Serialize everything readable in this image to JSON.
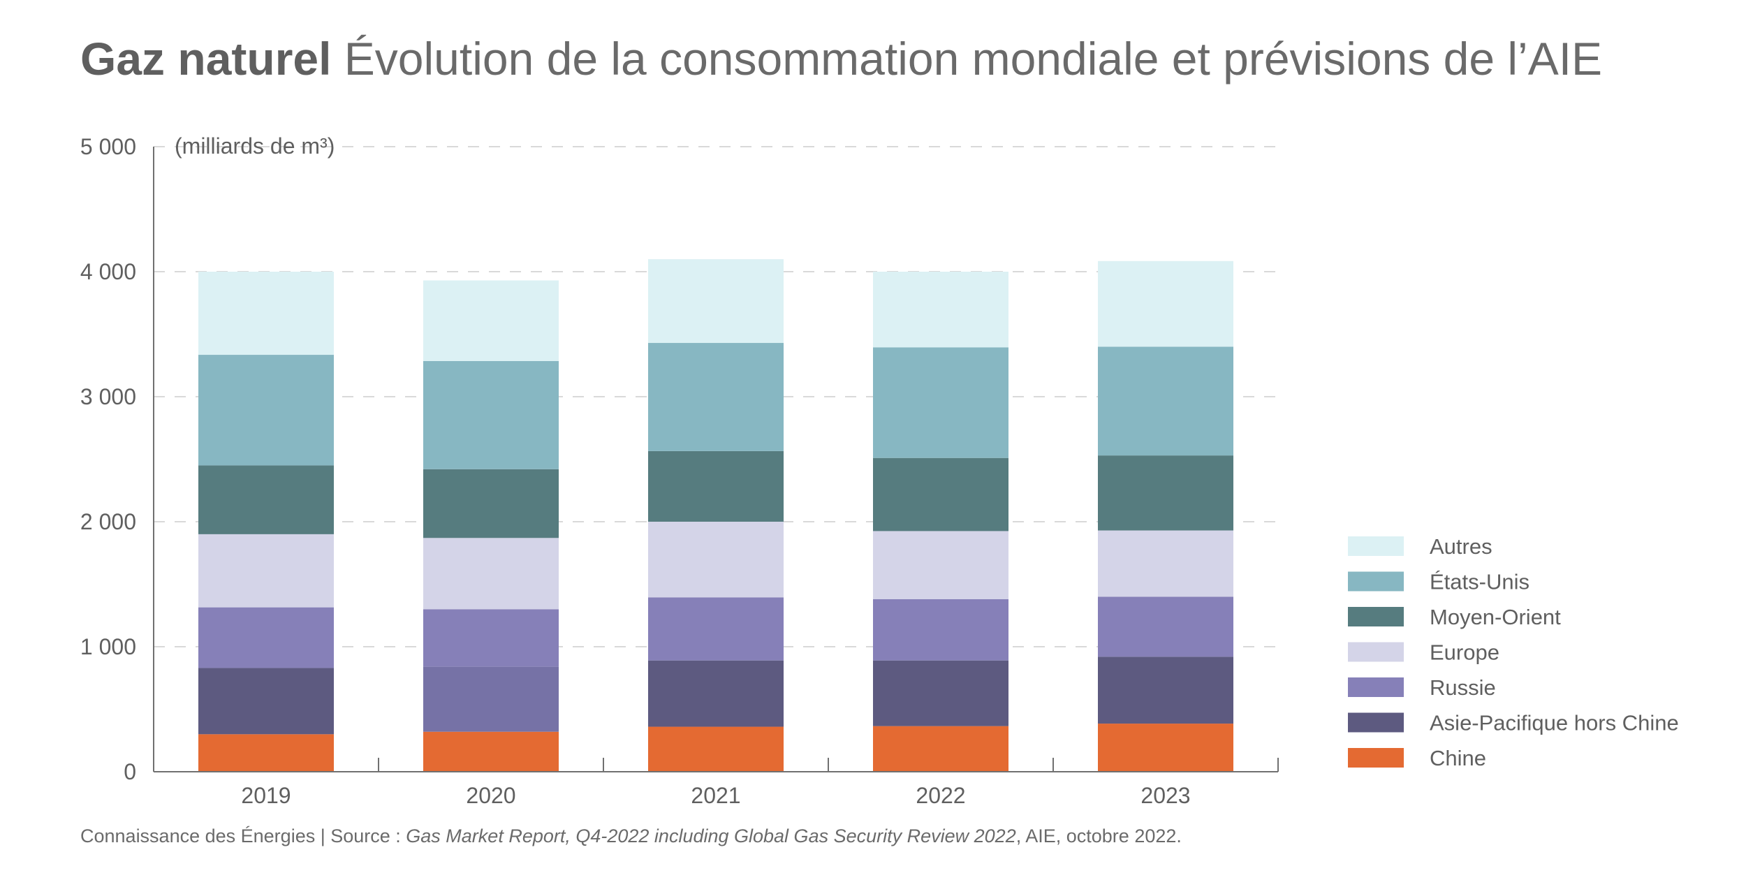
{
  "title": {
    "bold": "Gaz naturel",
    "rest": " Évolution de la consommation mondiale et prévisions de l’AIE"
  },
  "source": {
    "prefix": "Connaissance des Énergies | Source : ",
    "italic": "Gas Market Report, Q4-2022 including Global Gas Security Review 2022",
    "suffix": ", AIE, octobre 2022."
  },
  "chart_data": {
    "type": "bar",
    "stacked": true,
    "unit_label": "(milliards de m³)",
    "categories": [
      "2019",
      "2020",
      "2021",
      "2022",
      "2023"
    ],
    "ylim": [
      0,
      5000
    ],
    "yticks": [
      0,
      1000,
      2000,
      3000,
      4000,
      5000
    ],
    "ytick_labels": [
      "0",
      "1 000",
      "2 000",
      "3 000",
      "4 000",
      "5 000"
    ],
    "grid": true,
    "legend_position": "right",
    "series": [
      {
        "name": "Chine",
        "color": "#e46a32",
        "values": [
          300,
          320,
          360,
          365,
          385
        ]
      },
      {
        "name": "Asie-Pacifique hors Chine",
        "color": "#5d5a80",
        "values": [
          530,
          520,
          530,
          525,
          535
        ]
      },
      {
        "name": "Russie",
        "color": "#8680b8",
        "values": [
          485,
          460,
          505,
          490,
          480
        ]
      },
      {
        "name": "Europe",
        "color": "#d4d4e8",
        "values": [
          585,
          570,
          605,
          545,
          530
        ]
      },
      {
        "name": "Moyen-Orient",
        "color": "#567c7f",
        "values": [
          550,
          550,
          565,
          585,
          600
        ]
      },
      {
        "name": "États-Unis",
        "color": "#87b7c2",
        "values": [
          885,
          865,
          865,
          885,
          870
        ]
      },
      {
        "name": "Autres",
        "color": "#dcf1f4",
        "values": [
          665,
          645,
          670,
          605,
          685
        ]
      }
    ],
    "highlight": {
      "category": "2020",
      "series": "Asie-Pacifique hors Chine",
      "color": "#7672a6"
    }
  }
}
